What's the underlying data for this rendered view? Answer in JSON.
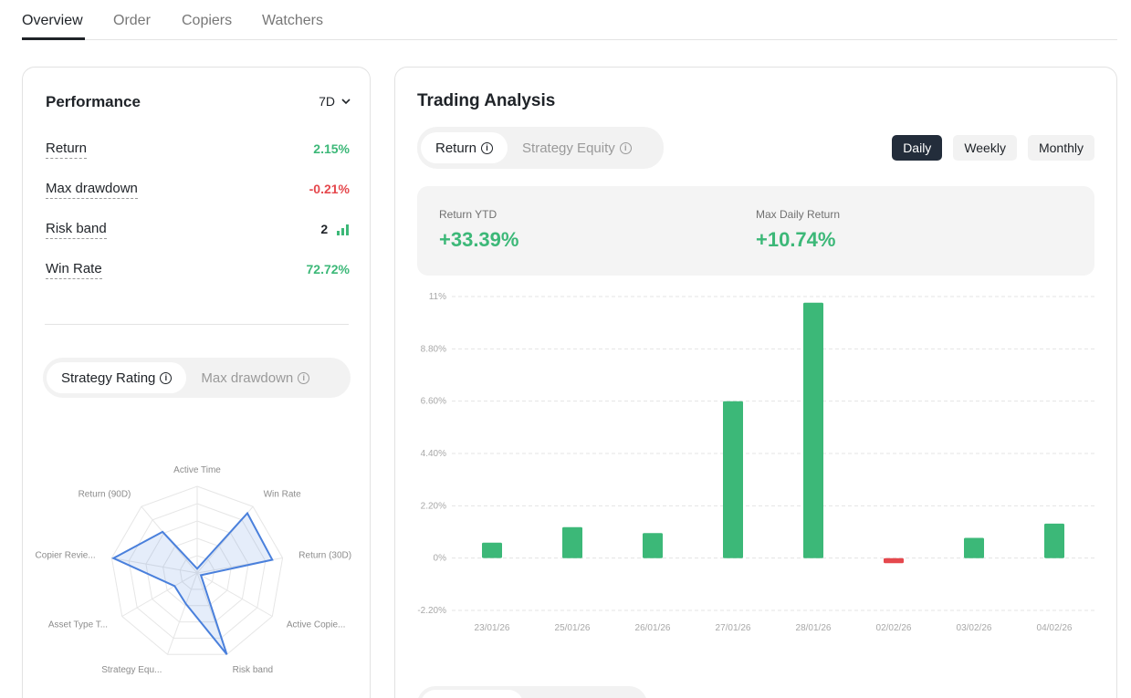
{
  "tabs": [
    {
      "label": "Overview",
      "active": true
    },
    {
      "label": "Order",
      "active": false
    },
    {
      "label": "Copiers",
      "active": false
    },
    {
      "label": "Watchers",
      "active": false
    }
  ],
  "performance": {
    "title": "Performance",
    "period": "7D",
    "metrics": [
      {
        "label": "Return",
        "value": "2.15%",
        "tone": "green"
      },
      {
        "label": "Max drawdown",
        "value": "-0.21%",
        "tone": "red"
      },
      {
        "label": "Risk band",
        "value": "2",
        "tone": "dark"
      },
      {
        "label": "Win Rate",
        "value": "72.72%",
        "tone": "green"
      }
    ],
    "risk_level": 2,
    "risk_level_max": 3
  },
  "rating_toggle": {
    "items": [
      "Strategy Rating",
      "Max drawdown"
    ],
    "active_index": 0
  },
  "radar": {
    "axes": [
      "Active Time",
      "Win Rate",
      "Return  (30D)",
      "Active Copie...",
      "Risk band",
      "Strategy Equ...",
      "Asset Type T...",
      "Copier Revie...",
      "Return  (90D)"
    ],
    "scores": [
      0.05,
      0.9,
      0.88,
      0.05,
      1.0,
      0.38,
      0.3,
      0.98,
      0.62
    ],
    "levels": 5
  },
  "trading_analysis": {
    "title": "Trading Analysis",
    "toggle": {
      "items": [
        "Return",
        "Strategy Equity"
      ],
      "active_index": 0
    },
    "ranges": [
      "Daily",
      "Weekly",
      "Monthly"
    ],
    "active_range": 0,
    "stats": [
      {
        "label": "Return YTD",
        "value": "+33.39%"
      },
      {
        "label": "Max Daily Return",
        "value": "+10.74%"
      }
    ]
  },
  "chart_data": {
    "type": "bar",
    "categories": [
      "23/01/26",
      "25/01/26",
      "26/01/26",
      "27/01/26",
      "28/01/26",
      "02/02/26",
      "03/02/26",
      "04/02/26"
    ],
    "values": [
      0.65,
      1.3,
      1.05,
      6.6,
      10.74,
      -0.21,
      0.85,
      1.45
    ],
    "y_ticks": [
      "11%",
      "8.80%",
      "6.60%",
      "4.40%",
      "2.20%",
      "0%",
      "-2.20%"
    ],
    "ylim": [
      -2.2,
      11
    ],
    "grid": true,
    "colors": {
      "positive": "#3cb878",
      "negative": "#e5484d"
    }
  }
}
